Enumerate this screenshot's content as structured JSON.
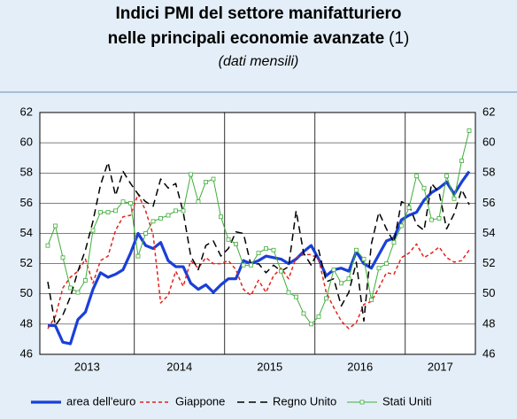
{
  "chart_data": {
    "type": "line",
    "title": [
      "Indici PMI del settore manifatturiero",
      "nelle principali economie avanzate"
    ],
    "title_note": "(1)",
    "subtitle": "(dati mensili)",
    "xticks": [
      2013,
      2014,
      2015,
      2016,
      2017
    ],
    "ylim": [
      46,
      62
    ],
    "yticks": [
      46,
      48,
      50,
      52,
      54,
      56,
      58,
      60,
      62
    ],
    "grid": true,
    "series": [
      {
        "name": "area dell'euro",
        "color": "#1a3fd8",
        "values": [
          47.9,
          47.9,
          46.8,
          46.7,
          48.3,
          48.8,
          50.3,
          51.4,
          51.1,
          51.3,
          51.6,
          52.7,
          54.0,
          53.2,
          53.0,
          53.4,
          52.2,
          51.8,
          51.8,
          50.7,
          50.3,
          50.6,
          50.1,
          50.6,
          51.0,
          51.0,
          52.2,
          52.0,
          52.2,
          52.5,
          52.4,
          52.3,
          52.0,
          52.3,
          52.8,
          53.2,
          52.3,
          51.2,
          51.6,
          51.7,
          51.5,
          52.8,
          52.0,
          51.7,
          52.6,
          53.5,
          53.7,
          54.9,
          55.2,
          55.4,
          56.2,
          56.7,
          57.0,
          57.4,
          56.6,
          57.4,
          58.1
        ]
      },
      {
        "name": "Giappone",
        "color": "#e3231b",
        "values": [
          47.7,
          48.5,
          50.4,
          51.1,
          51.5,
          52.3,
          50.7,
          52.2,
          52.5,
          54.2,
          55.1,
          55.2,
          56.6,
          55.5,
          53.9,
          49.4,
          49.9,
          51.5,
          50.5,
          52.2,
          51.7,
          52.4,
          52.0,
          52.0,
          52.2,
          51.6,
          50.3,
          49.9,
          50.9,
          50.1,
          51.2,
          51.7,
          51.0,
          52.4,
          52.6,
          52.6,
          52.3,
          50.1,
          49.1,
          48.2,
          47.7,
          48.1,
          49.3,
          49.5,
          50.4,
          51.4,
          51.3,
          52.4,
          52.7,
          53.3,
          52.4,
          52.7,
          53.1,
          52.4,
          52.1,
          52.2,
          52.9
        ]
      },
      {
        "name": "Regno Unito",
        "color": "#000000",
        "values": [
          50.8,
          47.9,
          48.6,
          49.8,
          51.5,
          52.9,
          54.8,
          57.2,
          58.7,
          56.5,
          58.1,
          57.3,
          56.6,
          56.1,
          55.8,
          57.6,
          57.0,
          57.3,
          55.4,
          52.5,
          51.6,
          53.2,
          53.5,
          52.5,
          53.0,
          54.1,
          54.0,
          51.9,
          52.0,
          51.4,
          51.9,
          51.5,
          51.8,
          55.5,
          52.7,
          51.9,
          52.9,
          50.8,
          51.0,
          49.2,
          50.1,
          52.1,
          48.2,
          53.3,
          55.4,
          54.3,
          53.4,
          56.1,
          55.9,
          54.6,
          54.2,
          57.3,
          56.7,
          54.3,
          55.3,
          56.9,
          55.9
        ]
      },
      {
        "name": "Stati Uniti",
        "color": "#3fae3a",
        "values": [
          53.2,
          54.5,
          52.4,
          50.4,
          50.1,
          50.9,
          54.2,
          55.4,
          55.4,
          55.5,
          56.1,
          56.0,
          52.5,
          54.0,
          54.8,
          55.0,
          55.2,
          55.5,
          55.5,
          57.9,
          56.1,
          57.4,
          57.6,
          55.1,
          53.6,
          53.3,
          51.9,
          51.9,
          52.7,
          53.0,
          52.9,
          51.5,
          50.1,
          49.8,
          48.7,
          48.0,
          48.5,
          49.7,
          51.6,
          50.7,
          51.0,
          52.9,
          52.3,
          49.6,
          51.7,
          52.0,
          53.4,
          54.5,
          55.7,
          57.8,
          57.0,
          54.9,
          55.0,
          57.8,
          56.3,
          58.8,
          60.8
        ]
      }
    ]
  }
}
